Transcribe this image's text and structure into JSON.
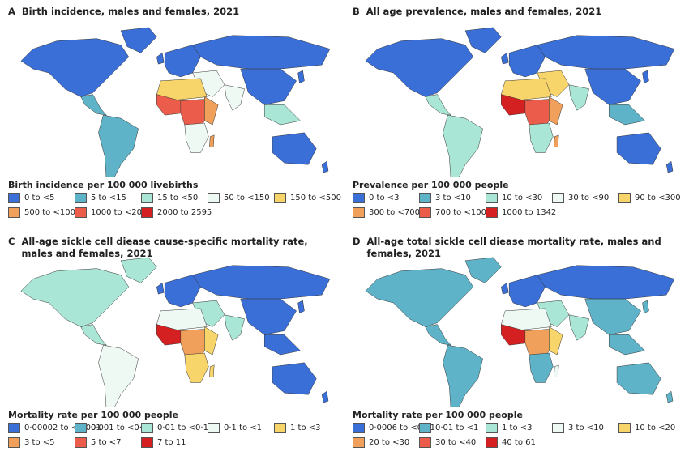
{
  "panels": [
    {
      "letter": "A",
      "title": "Birth incidence, males and females, 2021",
      "legend_title": "Birth incidence per 100 000 livebirths",
      "legend": [
        {
          "label": "0 to <5",
          "color": "#3a6fd8"
        },
        {
          "label": "5 to <15",
          "color": "#5fb3c9"
        },
        {
          "label": "15 to <50",
          "color": "#a9e6d5"
        },
        {
          "label": "50 to <150",
          "color": "#eef9f4"
        },
        {
          "label": "150 to <500",
          "color": "#f7d56a"
        },
        {
          "label": "500 to <1000",
          "color": "#f0a05a"
        },
        {
          "label": "1000 to <2000",
          "color": "#eb5c4a"
        },
        {
          "label": "2000 to 2595",
          "color": "#d42020"
        }
      ]
    },
    {
      "letter": "B",
      "title": "All age prevalence, males and females, 2021",
      "legend_title": "Prevalence per 100 000 people",
      "legend": [
        {
          "label": "0 to <3",
          "color": "#3a6fd8"
        },
        {
          "label": "3 to <10",
          "color": "#5fb3c9"
        },
        {
          "label": "10 to <30",
          "color": "#a9e6d5"
        },
        {
          "label": "30 to <90",
          "color": "#eef9f4"
        },
        {
          "label": "90 to <300",
          "color": "#f7d56a"
        },
        {
          "label": "300 to <700",
          "color": "#f0a05a"
        },
        {
          "label": "700 to <1000",
          "color": "#eb5c4a"
        },
        {
          "label": "1000 to 1342",
          "color": "#d42020"
        }
      ]
    },
    {
      "letter": "C",
      "title": "All-age sickle cell diease cause-specific mortality rate, males and females, 2021",
      "legend_title": "Mortality rate per 100 000 people",
      "legend": [
        {
          "label": "0·00002 to <0·001",
          "color": "#3a6fd8"
        },
        {
          "label": "0·001 to <0·01",
          "color": "#5fb3c9"
        },
        {
          "label": "0·01 to <0·1",
          "color": "#a9e6d5"
        },
        {
          "label": "0·1 to <1",
          "color": "#eef9f4"
        },
        {
          "label": "1 to <3",
          "color": "#f7d56a"
        },
        {
          "label": "3 to <5",
          "color": "#f0a05a"
        },
        {
          "label": "5 to <7",
          "color": "#eb5c4a"
        },
        {
          "label": "7 to 11",
          "color": "#d42020"
        }
      ]
    },
    {
      "letter": "D",
      "title": "All-age total sickle cell diease mortality rate, males and females, 2021",
      "legend_title": "Mortality rate per 100 000 people",
      "legend": [
        {
          "label": "0·0006 to <0·01",
          "color": "#3a6fd8"
        },
        {
          "label": "0·01 to <1",
          "color": "#5fb3c9"
        },
        {
          "label": "1 to <3",
          "color": "#a9e6d5"
        },
        {
          "label": "3 to <10",
          "color": "#eef9f4"
        },
        {
          "label": "10 to <20",
          "color": "#f7d56a"
        },
        {
          "label": "20 to <30",
          "color": "#f0a05a"
        },
        {
          "label": "30 to <40",
          "color": "#eb5c4a"
        },
        {
          "label": "40 to 61",
          "color": "#d42020"
        }
      ]
    }
  ]
}
